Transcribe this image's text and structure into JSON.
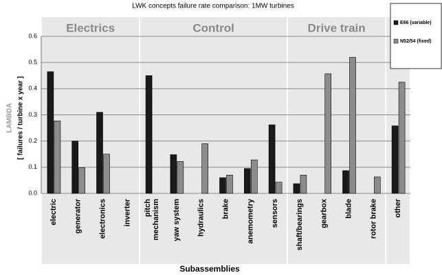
{
  "chart_data": {
    "type": "bar",
    "title": "LWK concepts failure rate comparison: 1MW turbines",
    "y_label": "LAMBDA",
    "y_label_unit": "[ failures / turbine x year ]",
    "x_label": "Subassemblies",
    "groups": [
      {
        "name": "Electrics",
        "size": 4
      },
      {
        "name": "Control",
        "size": 6
      },
      {
        "name": "Drive train",
        "size": 4
      }
    ],
    "categories": [
      "electric",
      "generator",
      "electronics",
      "inverter",
      "pitch\nmechanism",
      "yaw system",
      "hydraulics",
      "brake",
      "anemometry",
      "sensors",
      "shaft/bearings",
      "gearbox",
      "blade",
      "rotor brake",
      "other"
    ],
    "series": [
      {
        "name": "E66 (variable)",
        "color": "#1a1a1a",
        "values": [
          0.465,
          0.2,
          0.31,
          0,
          0.45,
          0.148,
          0,
          0.06,
          0.095,
          0.262,
          0.037,
          0,
          0.087,
          0,
          0.258
        ]
      },
      {
        "name": "N52/54 (fixed)",
        "color": "#8c8c8c",
        "values": [
          0.277,
          0.098,
          0.15,
          0,
          0,
          0.122,
          0.19,
          0.07,
          0.128,
          0.043,
          0.07,
          0.457,
          0.52,
          0.063,
          0.425
        ]
      }
    ],
    "ylim": [
      0,
      0.6
    ],
    "yticks": [
      {
        "value": 0,
        "label": "0.0"
      },
      0.1,
      0.2,
      0.3,
      0.4,
      0.5,
      0.6
    ],
    "grid": true
  }
}
